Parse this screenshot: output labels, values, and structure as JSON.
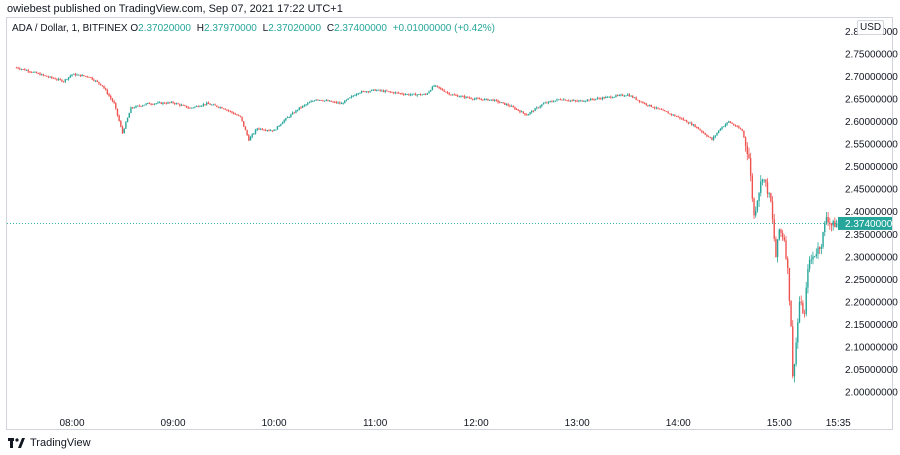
{
  "header": {
    "publish_line": "owiebest published on TradingView.com, Sep 07, 2021 17:22 UTC+1"
  },
  "legend": {
    "symbol": "ADA / Dollar, 1, BITFINEX",
    "open_label": "O",
    "open_value": "2.37020000",
    "high_label": "H",
    "high_value": "2.37970000",
    "low_label": "L",
    "low_value": "2.37020000",
    "close_label": "C",
    "close_value": "2.37400000",
    "change": "+0.01000000 (+0.42%)"
  },
  "price_scale": {
    "currency": "USD",
    "last_price_label": "2.37400000"
  },
  "footer": {
    "brand": "TradingView"
  },
  "colors": {
    "up": "#26a69a",
    "down": "#ef5350",
    "last_price": "#26a69a",
    "axis_text": "#131722",
    "border": "#d1d4dc"
  },
  "chart_data": {
    "type": "candlestick",
    "interval_minutes": 1,
    "ylim": [
      1.96,
      2.83
    ],
    "y_ticks": [
      "2.80000000",
      "2.75000000",
      "2.70000000",
      "2.65000000",
      "2.60000000",
      "2.55000000",
      "2.50000000",
      "2.45000000",
      "2.40000000",
      "2.35000000",
      "2.30000000",
      "2.25000000",
      "2.20000000",
      "2.15000000",
      "2.10000000",
      "2.05000000",
      "2.00000000"
    ],
    "x_ticks": [
      "08:00",
      "09:00",
      "10:00",
      "11:00",
      "12:00",
      "13:00",
      "14:00",
      "15:00",
      "15:35"
    ],
    "last_price": 2.374,
    "price_path": [
      [
        "07:27",
        2.72
      ],
      [
        "07:35",
        2.712
      ],
      [
        "07:45",
        2.7
      ],
      [
        "07:55",
        2.69
      ],
      [
        "08:00",
        2.705
      ],
      [
        "08:10",
        2.7
      ],
      [
        "08:18",
        2.68
      ],
      [
        "08:25",
        2.64
      ],
      [
        "08:30",
        2.575
      ],
      [
        "08:35",
        2.63
      ],
      [
        "08:45",
        2.64
      ],
      [
        "09:00",
        2.642
      ],
      [
        "09:10",
        2.63
      ],
      [
        "09:20",
        2.64
      ],
      [
        "09:30",
        2.63
      ],
      [
        "09:40",
        2.61
      ],
      [
        "09:45",
        2.56
      ],
      [
        "09:50",
        2.585
      ],
      [
        "10:00",
        2.58
      ],
      [
        "10:05",
        2.6
      ],
      [
        "10:15",
        2.63
      ],
      [
        "10:25",
        2.65
      ],
      [
        "10:40",
        2.64
      ],
      [
        "10:50",
        2.665
      ],
      [
        "11:00",
        2.67
      ],
      [
        "11:10",
        2.665
      ],
      [
        "11:20",
        2.66
      ],
      [
        "11:30",
        2.66
      ],
      [
        "11:35",
        2.68
      ],
      [
        "11:45",
        2.66
      ],
      [
        "12:00",
        2.65
      ],
      [
        "12:10",
        2.648
      ],
      [
        "12:20",
        2.635
      ],
      [
        "12:30",
        2.615
      ],
      [
        "12:40",
        2.64
      ],
      [
        "12:50",
        2.65
      ],
      [
        "13:00",
        2.645
      ],
      [
        "13:10",
        2.65
      ],
      [
        "13:20",
        2.655
      ],
      [
        "13:30",
        2.66
      ],
      [
        "13:40",
        2.64
      ],
      [
        "13:50",
        2.625
      ],
      [
        "14:00",
        2.61
      ],
      [
        "14:10",
        2.59
      ],
      [
        "14:20",
        2.56
      ],
      [
        "14:25",
        2.585
      ],
      [
        "14:30",
        2.6
      ],
      [
        "14:38",
        2.58
      ],
      [
        "14:42",
        2.52
      ],
      [
        "14:45",
        2.39
      ],
      [
        "14:47",
        2.43
      ],
      [
        "14:50",
        2.48
      ],
      [
        "14:52",
        2.46
      ],
      [
        "14:55",
        2.42
      ],
      [
        "14:58",
        2.3
      ],
      [
        "15:00",
        2.36
      ],
      [
        "15:03",
        2.34
      ],
      [
        "15:05",
        2.27
      ],
      [
        "15:07",
        2.15
      ],
      [
        "15:08",
        2.03
      ],
      [
        "15:10",
        2.11
      ],
      [
        "15:12",
        2.2
      ],
      [
        "15:15",
        2.17
      ],
      [
        "15:17",
        2.28
      ],
      [
        "15:20",
        2.3
      ],
      [
        "15:25",
        2.33
      ],
      [
        "15:28",
        2.39
      ],
      [
        "15:31",
        2.37
      ],
      [
        "15:35",
        2.374
      ]
    ]
  }
}
